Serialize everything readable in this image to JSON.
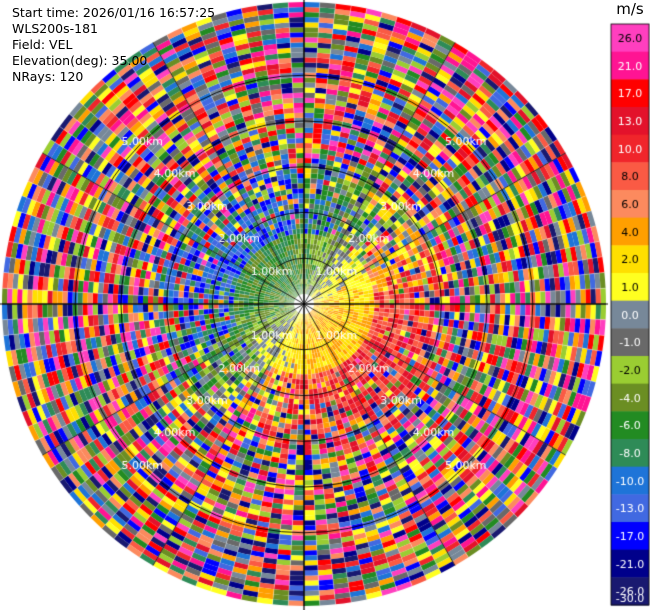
{
  "header": {
    "start_time": "Start time: 2026/01/16 16:57:25",
    "instrument": "WLS200s-181",
    "field": "Field: VEL",
    "elevation": "Elevation(deg): 35.00",
    "nrays": "NRays: 120"
  },
  "chart_data": {
    "type": "heatmap",
    "projection": "polar PPI",
    "field": "VEL",
    "units": "m/s",
    "n_rays": 120,
    "elevation_deg": 35.0,
    "range_rings_km": [
      1,
      2,
      3,
      4,
      5
    ],
    "range_ring_labels": [
      "1.00km",
      "2.00km",
      "3.00km",
      "4.00km",
      "5.00km"
    ],
    "max_range_km": 6.6,
    "colorbar": {
      "unit_label": "m/s",
      "tick_labels": [
        "26.0",
        "21.0",
        "17.0",
        "13.0",
        "10.0",
        "8.0",
        "6.0",
        "4.0",
        "2.0",
        "1.0",
        "0.0",
        "-1.0",
        "-2.0",
        "-4.0",
        "-6.0",
        "-8.0",
        "-10.0",
        "-13.0",
        "-17.0",
        "-21.0",
        "-26.0",
        "-30.0"
      ],
      "colors_top_to_bottom": [
        "#ff3fbf",
        "#ff1493",
        "#ff0000",
        "#e3122b",
        "#f0252b",
        "#fa5a44",
        "#fc8a5e",
        "#ff9f00",
        "#ffdf00",
        "#ffff20",
        "#778899",
        "#696969",
        "#9acd32",
        "#6b8e23",
        "#228b22",
        "#2e8b57",
        "#1e74d8",
        "#4169e1",
        "#0000ff",
        "#00008b",
        "#191970"
      ]
    },
    "pattern_description_values": {
      "near_field_positive_sector_az_deg": [
        60,
        200
      ],
      "near_field_negative_sector_az_deg": [
        210,
        20
      ]
    }
  }
}
